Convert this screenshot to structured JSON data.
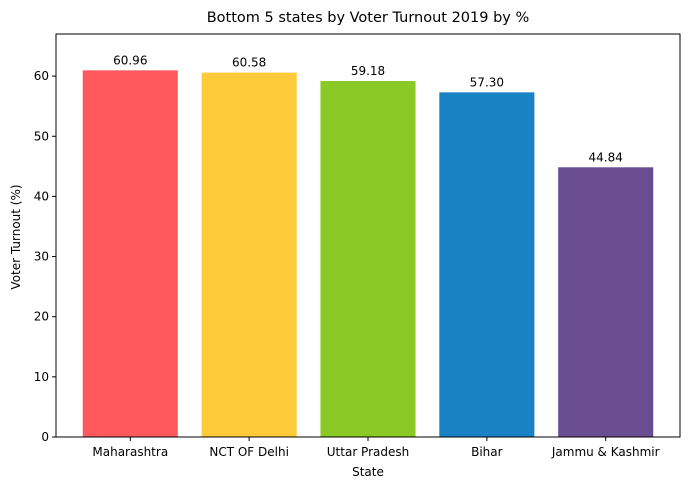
{
  "chart_data": {
    "type": "bar",
    "title": "Bottom 5 states by Voter Turnout 2019 by %",
    "xlabel": "State",
    "ylabel": "Voter Turnout (%)",
    "categories": [
      "Maharashtra",
      "NCT OF Delhi",
      "Uttar Pradesh",
      "Bihar",
      "Jammu & Kashmir"
    ],
    "values": [
      60.96,
      60.58,
      59.18,
      57.3,
      44.84
    ],
    "value_labels": [
      "60.96",
      "60.58",
      "59.18",
      "57.30",
      "44.84"
    ],
    "colors": [
      "#FF595E",
      "#FFCA3A",
      "#8AC926",
      "#1982C4",
      "#6A4C93"
    ],
    "ylim": [
      0,
      67
    ],
    "yticks": [
      0,
      10,
      20,
      30,
      40,
      50,
      60
    ],
    "grid": false,
    "legend": "none"
  }
}
